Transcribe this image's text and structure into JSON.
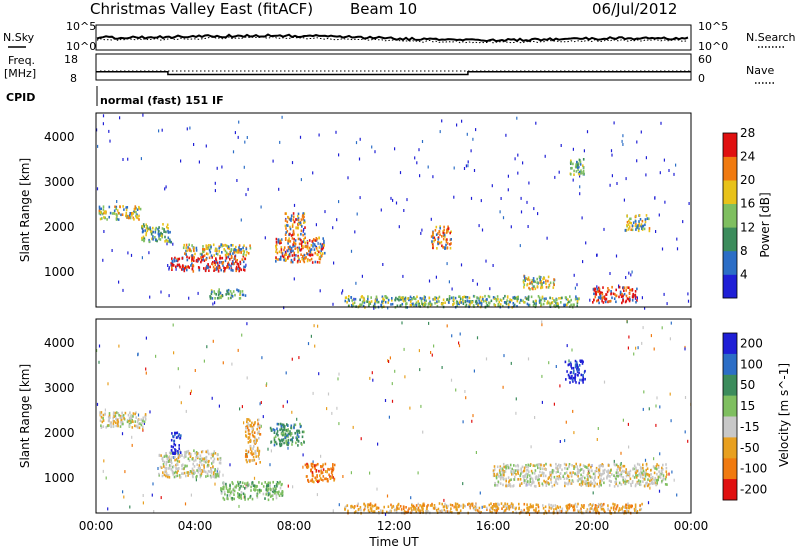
{
  "header": {
    "station": "Christmas Valley East (fitACF)",
    "beam": "Beam 10",
    "date": "06/Jul/2012"
  },
  "top_panels": {
    "nsky_label": "N.Sky",
    "nsearch_label": "N.Search",
    "freq_label_line1": "Freq.",
    "freq_label_line2": "[MHz]",
    "nave_label": "Nave",
    "cpid_label": "CPID",
    "cpid_value": "normal (fast) 151 IF",
    "noise_ticks_left": [
      "10^5",
      "10^0"
    ],
    "noise_ticks_right": [
      "10^5",
      "10^0"
    ],
    "freq_ticks": [
      "18",
      "8"
    ],
    "nave_ticks": [
      "60",
      "0"
    ],
    "freq_value": [
      {
        "x": [
          0,
          2.9
        ],
        "mhz": 11.2
      },
      {
        "x": [
          2.9,
          15.0
        ],
        "mhz": 10.1
      },
      {
        "x": [
          15.0,
          24.0
        ],
        "mhz": 11.2
      }
    ]
  },
  "chart_data": [
    {
      "type": "heatmap",
      "name": "power",
      "ylabel": "Slant Range [km]",
      "xlim": [
        0,
        24
      ],
      "ylim": [
        180,
        4500
      ],
      "yticks": [
        "1000",
        "2000",
        "3000",
        "4000"
      ],
      "colorbar": {
        "label": "Power [dB]",
        "ticks": [
          "4",
          "8",
          "12",
          "16",
          "20",
          "24",
          "28"
        ],
        "colors": [
          "#1f1fd6",
          "#2c6ec6",
          "#3c8c5c",
          "#7fbf60",
          "#e8c21a",
          "#f07a10",
          "#e01010"
        ]
      },
      "features": [
        {
          "t": [
            0.1,
            1.8
          ],
          "r": [
            2150,
            2450
          ],
          "level": 4
        },
        {
          "t": [
            1.8,
            3.0
          ],
          "r": [
            1650,
            2050
          ],
          "level": 3
        },
        {
          "t": [
            3.0,
            6.0
          ],
          "r": [
            1000,
            1350
          ],
          "level": 6
        },
        {
          "t": [
            3.5,
            6.2
          ],
          "r": [
            1350,
            1600
          ],
          "level": 4
        },
        {
          "t": [
            7.2,
            9.2
          ],
          "r": [
            1200,
            1750
          ],
          "level": 5
        },
        {
          "t": [
            7.6,
            8.4
          ],
          "r": [
            1800,
            2300
          ],
          "level": 5
        },
        {
          "t": [
            4.5,
            6.0
          ],
          "r": [
            400,
            600
          ],
          "level": 3
        },
        {
          "t": [
            10.0,
            19.5
          ],
          "r": [
            200,
            450
          ],
          "level": 3
        },
        {
          "t": [
            13.5,
            14.3
          ],
          "r": [
            1500,
            2000
          ],
          "level": 5
        },
        {
          "t": [
            17.2,
            18.5
          ],
          "r": [
            600,
            900
          ],
          "level": 4
        },
        {
          "t": [
            20.0,
            21.8
          ],
          "r": [
            300,
            650
          ],
          "level": 6
        },
        {
          "t": [
            19.1,
            19.7
          ],
          "r": [
            3100,
            3500
          ],
          "level": 3
        },
        {
          "t": [
            21.3,
            22.3
          ],
          "r": [
            1900,
            2250
          ],
          "level": 4
        }
      ]
    },
    {
      "type": "heatmap",
      "name": "velocity",
      "ylabel": "Slant Range [km]",
      "xlabel": "Time UT",
      "xlim": [
        0,
        24
      ],
      "ylim": [
        180,
        4500
      ],
      "xticks": [
        "00:00",
        "04:00",
        "08:00",
        "12:00",
        "16:00",
        "20:00",
        "00:00"
      ],
      "yticks": [
        "1000",
        "2000",
        "3000",
        "4000"
      ],
      "colorbar": {
        "label": "Velocity [m s^-1]",
        "ticks": [
          "200",
          "100",
          "50",
          "15",
          "-15",
          "-50",
          "-100",
          "-200"
        ],
        "colors": [
          "#1f1fd6",
          "#2c6ec6",
          "#3c8c5c",
          "#7fbf60",
          "#c8c8c8",
          "#e8a020",
          "#f07a10",
          "#e01010"
        ]
      },
      "features": [
        {
          "t": [
            0.1,
            2.0
          ],
          "r": [
            2100,
            2450
          ],
          "level": 4
        },
        {
          "t": [
            2.5,
            5.0
          ],
          "r": [
            1000,
            1600
          ],
          "level": 4
        },
        {
          "t": [
            3.0,
            3.4
          ],
          "r": [
            1500,
            2000
          ],
          "level": 0
        },
        {
          "t": [
            7.0,
            8.4
          ],
          "r": [
            1700,
            2200
          ],
          "level": 2
        },
        {
          "t": [
            8.4,
            9.6
          ],
          "r": [
            900,
            1300
          ],
          "level": 6
        },
        {
          "t": [
            5.0,
            7.5
          ],
          "r": [
            500,
            900
          ],
          "level": 3
        },
        {
          "t": [
            10.0,
            22.0
          ],
          "r": [
            200,
            420
          ],
          "level": 5
        },
        {
          "t": [
            16.0,
            23.0
          ],
          "r": [
            800,
            1300
          ],
          "level": 4
        },
        {
          "t": [
            18.9,
            19.7
          ],
          "r": [
            3100,
            3600
          ],
          "level": 0
        },
        {
          "t": [
            6.0,
            6.6
          ],
          "r": [
            1300,
            2300
          ],
          "level": 5
        }
      ]
    }
  ]
}
